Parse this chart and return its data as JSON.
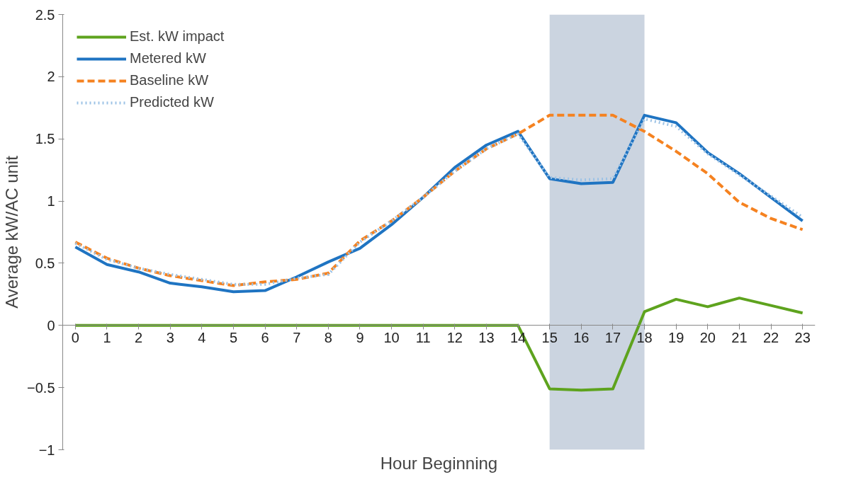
{
  "chart_data": {
    "type": "line",
    "xlabel": "Hour Beginning",
    "ylabel": "Average kW/AC unit",
    "x": [
      0,
      1,
      2,
      3,
      4,
      5,
      6,
      7,
      8,
      9,
      10,
      11,
      12,
      13,
      14,
      15,
      16,
      17,
      18,
      19,
      20,
      21,
      22,
      23
    ],
    "series": [
      {
        "name": "Est. kW impact",
        "color": "#5ea31e",
        "line_style": "solid",
        "values": [
          0,
          0,
          0,
          0,
          0,
          0,
          0,
          0,
          0,
          0,
          0,
          0,
          0,
          0,
          0,
          -0.51,
          -0.52,
          -0.51,
          0.11,
          0.21,
          0.15,
          0.22,
          0.16,
          0.1
        ]
      },
      {
        "name": "Metered kW",
        "color": "#1f74c2",
        "line_style": "solid",
        "values": [
          0.63,
          0.49,
          0.43,
          0.34,
          0.31,
          0.27,
          0.28,
          0.39,
          0.51,
          0.62,
          0.81,
          1.03,
          1.27,
          1.45,
          1.56,
          1.18,
          1.14,
          1.15,
          1.69,
          1.63,
          1.39,
          1.22,
          1.03,
          0.84
        ]
      },
      {
        "name": "Baseline kW",
        "color": "#f58220",
        "line_style": "dashed",
        "values": [
          0.67,
          0.54,
          0.46,
          0.4,
          0.36,
          0.32,
          0.35,
          0.37,
          0.42,
          0.68,
          0.84,
          1.03,
          1.24,
          1.42,
          1.54,
          1.69,
          1.69,
          1.69,
          1.56,
          1.4,
          1.22,
          0.99,
          0.86,
          0.77
        ]
      },
      {
        "name": "Predicted kW",
        "color": "#9dc3e6",
        "line_style": "dotted",
        "values": [
          0.66,
          0.53,
          0.46,
          0.41,
          0.37,
          0.33,
          0.33,
          0.38,
          0.41,
          0.67,
          0.84,
          1.03,
          1.24,
          1.42,
          1.54,
          1.19,
          1.17,
          1.18,
          1.66,
          1.6,
          1.38,
          1.21,
          1.04,
          0.87
        ]
      }
    ],
    "xlim": [
      -0.4,
      23.4
    ],
    "xticks": [
      0,
      1,
      2,
      3,
      4,
      5,
      6,
      7,
      8,
      9,
      10,
      11,
      12,
      13,
      14,
      15,
      16,
      17,
      18,
      19,
      20,
      21,
      22,
      23
    ],
    "ylim": [
      -1,
      2.5
    ],
    "yticks": [
      -1,
      -0.5,
      0,
      0.5,
      1,
      1.5,
      2,
      2.5
    ],
    "bands": [
      {
        "axis": "x",
        "from": 15,
        "to": 18,
        "color": "#a9b8cc"
      }
    ],
    "grid": false,
    "legend": "top left",
    "marker": "none"
  }
}
